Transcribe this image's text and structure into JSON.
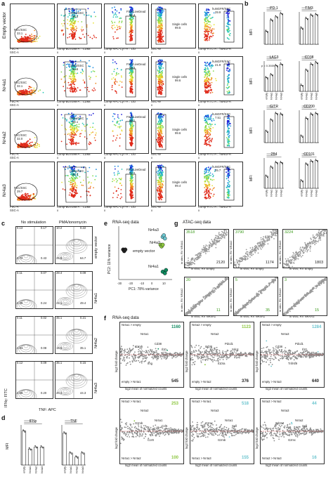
{
  "panel_letters": {
    "a": "a",
    "b": "b",
    "c": "c",
    "d": "d",
    "e": "e",
    "f": "f",
    "g": "g"
  },
  "panel_a": {
    "rows": [
      {
        "label": "Empty vector",
        "fsc": "FSC/SSC",
        "fsc_val": "33.1",
        "cd8": "CD8a/SSC",
        "cd8_val": "95.5",
        "live": "FSC/LiveDead",
        "live_val": "96.4",
        "single": "Single cells",
        "single_val": "99.5",
        "ngfr": "huNGFR/SSC",
        "ngfr_val": "29.9"
      },
      {
        "label": "Nr4a1",
        "fsc": "FSC/SSC",
        "fsc_val": "32.1",
        "cd8": "CD8a/SSC",
        "cd8_val": "90.5",
        "live": "FSC/LiveDead",
        "live_val": "98.3",
        "single": "Single cells",
        "single_val": "99.6",
        "ngfr": "huNGFR/SSC",
        "ngfr_val": "21.9"
      },
      {
        "label": "Nr4a2",
        "fsc": "FSC/SSC",
        "fsc_val": "32.0",
        "cd8": "CD8a/SSC",
        "cd8_val": "96.1",
        "live": "FSC/LiveDead",
        "live_val": "98.1",
        "single": "Single cells",
        "single_val": "99.6",
        "ngfr": "huNGFR/SSC",
        "ngfr_val": "7.51"
      },
      {
        "label": "Nr4a3",
        "fsc": "FSC/SSC",
        "fsc_val": "29.7",
        "cd8": "CD8a/SSC",
        "cd8_val": "95.9",
        "live": "FSC/LiveDead",
        "live_val": "97.2",
        "single": "Single cells",
        "single_val": "99.4",
        "ngfr": "huNGFR/SSC",
        "ngfr_val": "25.7"
      }
    ],
    "axes": {
      "x1": "FSC-A",
      "y1": "SSC-A",
      "x2": "Comp-BUV395-A :: CD8a",
      "y2": "x",
      "x3": "Comp-APC-Cy7-A :: L/D",
      "y3": "x",
      "x4": "SSC-W",
      "y4": "x",
      "x5": "Comp-FITC-A :: huNGFR",
      "y5": "x"
    }
  },
  "panel_b": {
    "ylabel": "MFI",
    "titles": [
      "PD-1",
      "TIM3",
      "LAG3",
      "CD38",
      "GITR",
      "CD200",
      "2B4",
      "CD101"
    ],
    "pval": "p = 0.3559",
    "groups": [
      "empty",
      "Nr4a1",
      "Nr4a2",
      "Nr4a3"
    ],
    "chart_data": [
      {
        "type": "bar",
        "title": "PD-1",
        "categories": [
          "empty",
          "Nr4a1",
          "Nr4a2",
          "Nr4a3"
        ],
        "values": [
          40,
          75,
          85,
          95
        ]
      },
      {
        "type": "bar",
        "title": "TIM3",
        "categories": [
          "empty",
          "Nr4a1",
          "Nr4a2",
          "Nr4a3"
        ],
        "values": [
          50,
          80,
          90,
          92
        ]
      },
      {
        "type": "bar",
        "title": "LAG3",
        "categories": [
          "empty",
          "Nr4a1",
          "Nr4a2",
          "Nr4a3"
        ],
        "values": [
          45,
          55,
          85,
          90
        ]
      },
      {
        "type": "bar",
        "title": "CD38",
        "categories": [
          "empty",
          "Nr4a1",
          "Nr4a2",
          "Nr4a3"
        ],
        "values": [
          20,
          70,
          90,
          95
        ]
      },
      {
        "type": "bar",
        "title": "GITR",
        "categories": [
          "empty",
          "Nr4a1",
          "Nr4a2",
          "Nr4a3"
        ],
        "values": [
          35,
          70,
          90,
          88
        ]
      },
      {
        "type": "bar",
        "title": "CD200",
        "categories": [
          "empty",
          "Nr4a1",
          "Nr4a2",
          "Nr4a3"
        ],
        "values": [
          20,
          75,
          88,
          90
        ]
      },
      {
        "type": "bar",
        "title": "2B4",
        "categories": [
          "empty",
          "Nr4a1",
          "Nr4a2",
          "Nr4a3"
        ],
        "values": [
          40,
          70,
          85,
          85
        ]
      },
      {
        "type": "bar",
        "title": "CD101",
        "categories": [
          "empty",
          "Nr4a1",
          "Nr4a2",
          "Nr4a3"
        ],
        "values": [
          25,
          80,
          90,
          92
        ]
      }
    ]
  },
  "panel_c": {
    "col1": "No stimulation",
    "col2": "PMA/ionomycin",
    "rows": [
      "empty vector",
      "Nr4a1",
      "Nr4a2",
      "Nr4a3"
    ],
    "quads": [
      {
        "ns": [
          "0.13",
          "0.17",
          "3.72",
          "0.43"
        ],
        "pma": [
          "10.2",
          "0.22",
          "25.8",
          "64.7"
        ]
      },
      {
        "ns": [
          "0.11",
          "0.07",
          "2.35",
          "0.24"
        ],
        "pma": [
          "28.4",
          "0.09",
          "22.1",
          "49.4"
        ]
      },
      {
        "ns": [
          "0.11",
          "0.02",
          "1.91",
          "0.08"
        ],
        "pma": [
          "45.1",
          "0.21",
          "19.6",
          "35.1"
        ]
      },
      {
        "ns": [
          "0.12",
          "0.09",
          "2.56",
          "0.20"
        ],
        "pma": [
          "35.1",
          "0.15",
          "20.4",
          "44.3"
        ]
      }
    ],
    "xlabel": "TNF: APC",
    "ylabel": "IFNγ: FITC"
  },
  "panel_d": {
    "ylabel": "MFI",
    "t1": "IFNγ",
    "t2": "TNF",
    "chart_data": [
      {
        "type": "bar",
        "title": "IFNγ",
        "categories": [
          "empty",
          "Nr4a1",
          "Nr4a2",
          "Nr4a3"
        ],
        "values": [
          85,
          40,
          45,
          45
        ]
      },
      {
        "type": "bar",
        "title": "TNF",
        "categories": [
          "empty",
          "Nr4a1",
          "Nr4a2",
          "Nr4a3"
        ],
        "values": [
          80,
          30,
          20,
          30
        ]
      }
    ]
  },
  "panel_e": {
    "title": "RNA-seq data",
    "xlabel": "PC1: 78% variance",
    "ylabel": "PC2: 11% variance",
    "labels": [
      "empty vector",
      "Nr4a1",
      "Nr4a2",
      "Nr4a3"
    ],
    "ticks_x": [
      "-30",
      "-20",
      "-10",
      "0",
      "10"
    ],
    "chart_data": {
      "type": "scatter",
      "series": [
        {
          "name": "empty vector",
          "points": [
            [
              -28,
              4
            ],
            [
              -27,
              3
            ],
            [
              -26,
              4
            ]
          ]
        },
        {
          "name": "Nr4a1",
          "points": [
            [
              8,
              -10
            ],
            [
              10,
              -11
            ],
            [
              11,
              -9
            ]
          ]
        },
        {
          "name": "Nr4a2",
          "points": [
            [
              6,
              7
            ],
            [
              7,
              6
            ],
            [
              8,
              7
            ]
          ]
        },
        {
          "name": "Nr4a3",
          "points": [
            [
              8,
              12
            ],
            [
              9,
              13
            ],
            [
              10,
              11
            ]
          ]
        }
      ]
    }
  },
  "panel_g": {
    "title": "ATAC-seq data",
    "plots": [
      {
        "top": "3518",
        "bottom": "2120",
        "xlab": "in vitro, RV Empty",
        "ylab": "in vitro, RV NR4A1",
        "color": "#5cc23a"
      },
      {
        "top": "3790",
        "bottom": "1174",
        "xlab": "in vitro, RV Empty",
        "ylab": "in vitro, RV NR4A2",
        "color": "#5cc23a"
      },
      {
        "top": "3224",
        "bottom": "1803",
        "xlab": "in vitro, RV Empty",
        "ylab": "in vitro, RV NR4A3",
        "color": "#5cc23a"
      },
      {
        "top": "20",
        "bottom": "11",
        "xlab": "in vitro, RV NR4A1",
        "ylab": "in vitro, RV NR4A2",
        "color": "#5cc23a"
      },
      {
        "top": "5",
        "bottom": "35",
        "xlab": "in vitro, RV NR4A1",
        "ylab": "in vitro, RV NR4A3",
        "color": "#5cc23a"
      },
      {
        "top": "3",
        "bottom": "15",
        "xlab": "in vitro, RV NRAA2",
        "ylab": "in vitro, RV NR4A3",
        "color": "#5cc23a"
      }
    ]
  },
  "panel_f": {
    "title": "RNA-seq data",
    "ylabel": "log2 fold change",
    "xlabel": "log2 mean of normalized counts",
    "plots": [
      {
        "up_label": "Nr4a1 > empty",
        "down_label": "empty > Nr4a1",
        "up": "1160",
        "down": "545",
        "color": "#0f8a5f",
        "genes": [
          "Nr4a1",
          "Cd38",
          "Gzmb",
          "Il10",
          "Ifng"
        ]
      },
      {
        "up_label": "Nr4a2 > empty",
        "down_label": "empty > Nr4a2",
        "up": "1123",
        "down": "376",
        "color": "#8cc63f",
        "genes": [
          "Nr4a2",
          "Pdcd1",
          "Cd38",
          "Sdc4",
          "Il10ra"
        ]
      },
      {
        "up_label": "Nr4a3 > empty",
        "down_label": "empty > Nr4a3",
        "up": "1284",
        "down": "640",
        "color": "#6cc5cf",
        "genes": [
          "Nr4a3",
          "Pdcd1",
          "Cd38",
          "Il10",
          "Tnfrsf9"
        ]
      },
      {
        "up_label": "Nr4a2 > Nr4a1",
        "down_label": "Nr4a1 > Nr4a2",
        "up": "253",
        "down": "100",
        "color": "#8cc63f",
        "genes": [
          "Nr4a2",
          "Nr4a1",
          "Gzmb",
          "Ccl5",
          "Ccr8"
        ]
      },
      {
        "up_label": "Nr4a3 > Nr4a1",
        "down_label": "Nr4a1 > Nr4a3",
        "up": "518",
        "down": "155",
        "color": "#6cc5cf",
        "genes": [
          "Nr4a3",
          "Nr4a1",
          "Gzmc",
          "Sell",
          "Gzmb"
        ]
      },
      {
        "up_label": "Nr4a3 > Nr4a2",
        "down_label": "Nr4a2 > Nr4a3",
        "up": "44",
        "down": "16",
        "color": "#6cc5cf",
        "genes": [
          "Nr4a3",
          "Nr4a2",
          "Cd244",
          "Sell",
          "Gzmc"
        ]
      }
    ]
  }
}
